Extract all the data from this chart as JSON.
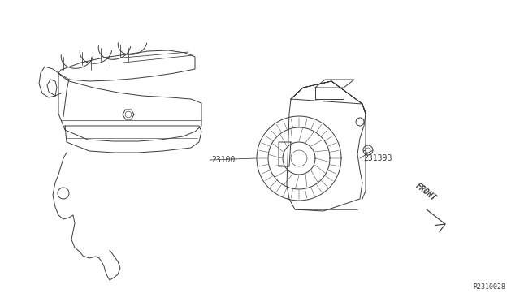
{
  "bg_color": "#ffffff",
  "line_color": "#3a3a3a",
  "label_23100": "23100",
  "label_23139B": "23139B",
  "label_front": "FRONT",
  "label_ref": "R2310028",
  "figsize": [
    6.4,
    3.72
  ],
  "dpi": 100,
  "img_xlim": [
    0,
    640
  ],
  "img_ylim": [
    0,
    372
  ]
}
